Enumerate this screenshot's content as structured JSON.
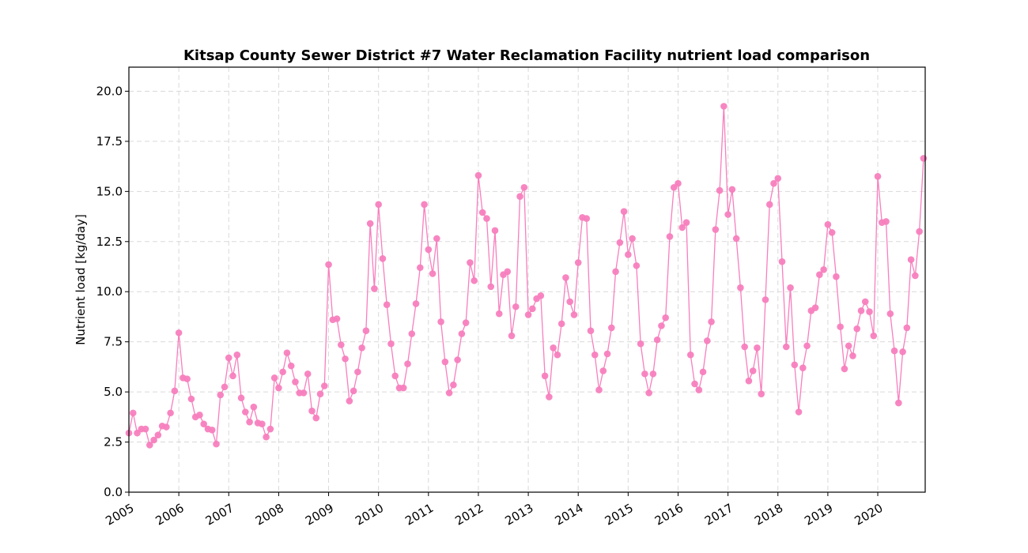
{
  "chart_data": {
    "type": "line",
    "title": "Kitsap County Sewer District #7 Water Reclamation Facility nutrient load comparison",
    "xlabel": "",
    "ylabel": "Nutrient load [kg/day]",
    "xlim": [
      2005.0,
      2020.95
    ],
    "ylim": [
      0,
      21.2
    ],
    "yticks": [
      0.0,
      2.5,
      5.0,
      7.5,
      10.0,
      12.5,
      15.0,
      17.5,
      20.0
    ],
    "ytick_labels": [
      "0.0",
      "2.5",
      "5.0",
      "7.5",
      "10.0",
      "12.5",
      "15.0",
      "17.5",
      "20.0"
    ],
    "xticks": [
      2005,
      2006,
      2007,
      2008,
      2009,
      2010,
      2011,
      2012,
      2013,
      2014,
      2015,
      2016,
      2017,
      2018,
      2019,
      2020
    ],
    "xtick_labels": [
      "2005",
      "2006",
      "2007",
      "2008",
      "2009",
      "2010",
      "2011",
      "2012",
      "2013",
      "2014",
      "2015",
      "2016",
      "2017",
      "2018",
      "2019",
      "2020"
    ],
    "grid": true,
    "series": [
      {
        "name": "Nutrient load",
        "color": "#f77fbe",
        "marker": "circle",
        "x_start": 2005.0,
        "x_step_months": 1,
        "values": [
          2.95,
          3.95,
          2.95,
          3.15,
          3.15,
          2.35,
          2.6,
          2.85,
          3.3,
          3.25,
          3.95,
          5.05,
          7.95,
          5.7,
          5.65,
          4.65,
          3.75,
          3.85,
          3.4,
          3.15,
          3.1,
          2.4,
          4.85,
          5.25,
          6.7,
          5.8,
          6.85,
          4.7,
          4.0,
          3.5,
          4.25,
          3.45,
          3.4,
          2.75,
          3.15,
          5.7,
          5.2,
          6.0,
          6.95,
          6.3,
          5.5,
          4.95,
          4.95,
          5.9,
          4.05,
          3.7,
          4.9,
          5.3,
          11.35,
          8.6,
          8.65,
          7.35,
          6.65,
          4.55,
          5.05,
          6.0,
          7.2,
          8.05,
          13.4,
          10.15,
          14.35,
          11.65,
          9.35,
          7.4,
          5.8,
          5.2,
          5.2,
          6.4,
          7.9,
          9.4,
          11.2,
          14.35,
          12.1,
          10.9,
          12.65,
          8.5,
          6.5,
          4.95,
          5.35,
          6.6,
          7.9,
          8.45,
          11.45,
          10.55,
          15.8,
          13.95,
          13.65,
          10.25,
          13.05,
          8.9,
          10.85,
          11.0,
          7.8,
          9.25,
          14.75,
          15.2,
          8.85,
          9.15,
          9.65,
          9.8,
          5.8,
          4.75,
          7.2,
          6.85,
          8.4,
          10.7,
          9.5,
          8.85,
          11.45,
          13.7,
          13.65,
          8.05,
          6.85,
          5.1,
          6.05,
          6.9,
          8.2,
          11.0,
          12.45,
          14.0,
          11.85,
          12.65,
          11.3,
          7.4,
          5.9,
          4.95,
          5.9,
          7.6,
          8.3,
          8.7,
          12.75,
          15.2,
          15.4,
          13.2,
          13.45,
          6.85,
          5.4,
          5.1,
          6.0,
          7.55,
          8.5,
          13.1,
          15.05,
          19.25,
          13.85,
          15.1,
          12.65,
          10.2,
          7.25,
          5.55,
          6.05,
          7.2,
          4.9,
          9.6,
          14.35,
          15.4,
          15.65,
          11.5,
          7.25,
          10.2,
          6.35,
          4.0,
          6.2,
          7.3,
          9.05,
          9.2,
          10.85,
          11.1,
          13.35,
          12.95,
          10.75,
          8.25,
          6.15,
          7.3,
          6.8,
          8.15,
          9.05,
          9.5,
          9.0,
          7.8,
          15.75,
          13.45,
          13.5,
          8.9,
          7.05,
          4.45,
          7.0,
          8.2,
          11.6,
          10.8,
          13.0,
          16.65
        ]
      }
    ]
  }
}
